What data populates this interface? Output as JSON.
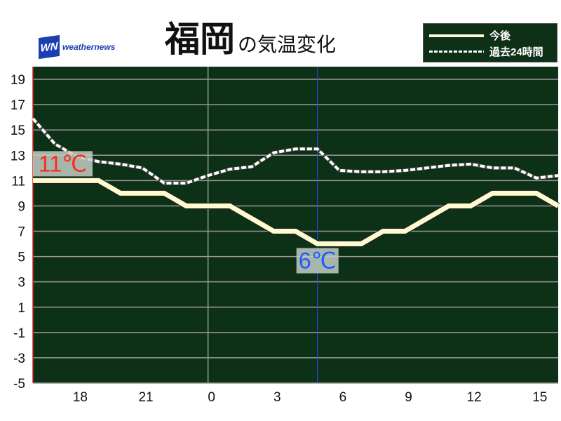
{
  "header": {
    "logo_text": "weathernews",
    "logo_mark": "WN",
    "city": "福岡",
    "title_rest": "の気温変化"
  },
  "legend": {
    "future_label": "今後",
    "past_label": "過去24時間"
  },
  "colors": {
    "plot_bg": "#0d3116",
    "future": "#fffbd0",
    "past": "#ffffff",
    "max_label": "#ff2a1a",
    "min_label": "#1f5cff",
    "grid": "#9a9a9a"
  },
  "chart_data": {
    "type": "line",
    "x": [
      16,
      17,
      18,
      19,
      20,
      21,
      22,
      23,
      0,
      1,
      2,
      3,
      4,
      5,
      6,
      7,
      8,
      9,
      10,
      11,
      12,
      13,
      14,
      15,
      16
    ],
    "xticks": [
      "18",
      "21",
      "0",
      "3",
      "6",
      "9",
      "12",
      "15"
    ],
    "xtick_hours": [
      18,
      21,
      0,
      3,
      6,
      9,
      12,
      15
    ],
    "yticks": [
      "19",
      "17",
      "15",
      "13",
      "11",
      "9",
      "7",
      "5",
      "3",
      "1",
      "-1",
      "-3",
      "-5"
    ],
    "ylim": [
      -5,
      20
    ],
    "grid": true,
    "legend": "top-right",
    "series": [
      {
        "name": "今後",
        "style": "solid",
        "values": [
          11,
          11,
          11,
          11,
          10,
          10,
          10,
          9,
          9,
          9,
          8,
          7,
          7,
          6,
          6,
          6,
          7,
          7,
          8,
          9,
          9,
          10,
          10,
          10,
          9
        ]
      },
      {
        "name": "過去24時間",
        "style": "dashed",
        "values": [
          15.9,
          13.9,
          12.9,
          12.5,
          12.3,
          12.0,
          10.8,
          10.8,
          11.4,
          11.9,
          12.1,
          13.2,
          13.5,
          13.5,
          11.8,
          11.7,
          11.7,
          11.8,
          12.0,
          12.2,
          12.3,
          12.0,
          12.0,
          11.2,
          11.4
        ]
      }
    ],
    "annotations": {
      "max": {
        "text": "11℃",
        "value": 11,
        "hour": 16
      },
      "min": {
        "text": "6℃",
        "value": 6,
        "hour": 5
      }
    }
  }
}
